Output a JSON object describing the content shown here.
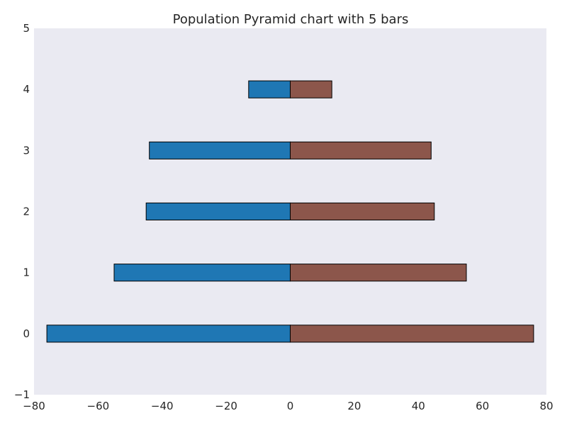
{
  "chart_data": {
    "type": "bar",
    "orientation": "horizontal",
    "subtype": "population-pyramid",
    "title": "Population Pyramid chart with 5 bars",
    "xlabel": "",
    "ylabel": "",
    "categories": [
      0,
      1,
      2,
      3,
      4
    ],
    "series": [
      {
        "values": [
          -76,
          -55,
          -45,
          -44,
          -13
        ],
        "color": "#1f77b4"
      },
      {
        "values": [
          76,
          55,
          45,
          44,
          13
        ],
        "color": "#8c564b"
      }
    ],
    "xlim": [
      -80,
      80
    ],
    "ylim": [
      -1,
      5
    ],
    "xticks": [
      -80,
      -60,
      -40,
      -20,
      0,
      20,
      40,
      60,
      80
    ],
    "xtick_labels": [
      "−80",
      "−60",
      "−40",
      "−20",
      "0",
      "20",
      "40",
      "60",
      "80"
    ],
    "yticks": [
      -1,
      0,
      1,
      2,
      3,
      4,
      5
    ],
    "ytick_labels": [
      "−1",
      "0",
      "1",
      "2",
      "3",
      "4",
      "5"
    ],
    "grid": false,
    "background": "#eaeaf2",
    "bar_edge_color": "#000000"
  }
}
